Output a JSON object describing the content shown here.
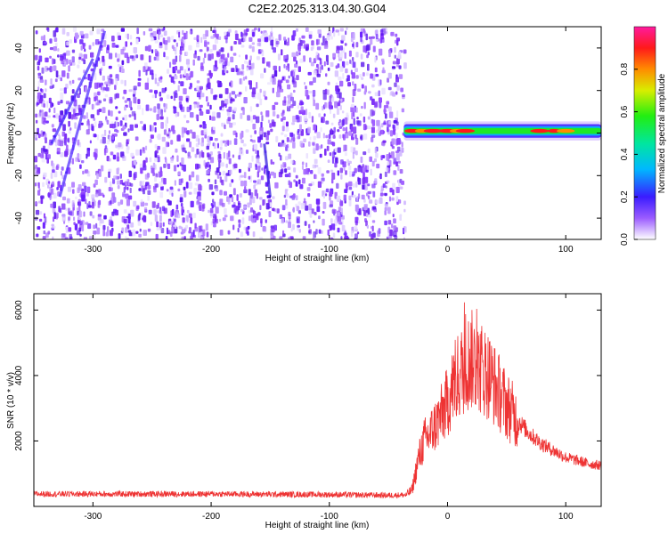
{
  "title": "C2E2.2025.313.04.30.G04",
  "chart_data": [
    {
      "type": "heatmap",
      "xlabel": "Height of straight line (km)",
      "ylabel": "Frequency (Hz)",
      "xlim": [
        -350,
        130
      ],
      "ylim": [
        -50,
        50
      ],
      "xticks": [
        -300,
        -200,
        -100,
        0,
        100
      ],
      "yticks": [
        -40,
        -20,
        0,
        20,
        40
      ],
      "noise_region_x": [
        -350,
        -37
      ],
      "signal_band_x": [
        -37,
        130
      ],
      "signal_center_freq_hz": 1,
      "colorbar": {
        "label": "Normalized spectral amplitude",
        "range": [
          0.0,
          1.0
        ],
        "ticks": [
          0.0,
          0.2,
          0.4,
          0.6,
          0.8
        ]
      }
    },
    {
      "type": "line",
      "xlabel": "Height of straight line (km)",
      "ylabel": "SNR (10 * v/v)",
      "xlim": [
        -350,
        130
      ],
      "ylim": [
        0,
        6500
      ],
      "xticks": [
        -300,
        -200,
        -100,
        0,
        100
      ],
      "yticks": [
        2000,
        4000,
        6000
      ],
      "color": "#ee3333",
      "series": [
        {
          "name": "SNR",
          "x": [
            -350,
            -300,
            -200,
            -100,
            -50,
            -35,
            -30,
            -25,
            -20,
            -15,
            -10,
            -5,
            0,
            5,
            10,
            15,
            20,
            25,
            30,
            35,
            40,
            50,
            60,
            70,
            80,
            90,
            100,
            110,
            120,
            130
          ],
          "values": [
            380,
            380,
            380,
            360,
            340,
            350,
            500,
            1400,
            2000,
            2200,
            2500,
            2800,
            3200,
            3700,
            4000,
            4300,
            4500,
            4300,
            4200,
            4000,
            3700,
            3100,
            2600,
            2200,
            1900,
            1700,
            1500,
            1400,
            1300,
            1250
          ]
        }
      ]
    }
  ]
}
